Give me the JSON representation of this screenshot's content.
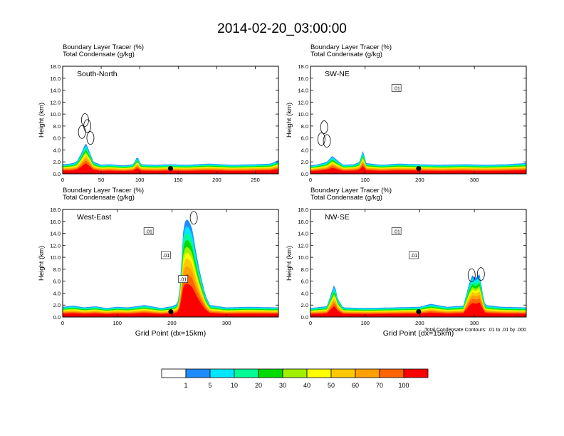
{
  "title": "2014-02-20_03:00:00",
  "palette": [
    "#ffffff",
    "#1e8cff",
    "#00e6ff",
    "#00fa96",
    "#00dc00",
    "#a0f000",
    "#ffff00",
    "#ffc800",
    "#ffa000",
    "#ff6400",
    "#ff0000"
  ],
  "colorbar_labels": [
    "1",
    "5",
    "10",
    "20",
    "30",
    "40",
    "50",
    "60",
    "70",
    "100"
  ],
  "contour_note": "Total Condensate Contours: .01 to .01 by .000",
  "chart_data": [
    {
      "type": "heatmap",
      "subtitle_line1": "Boundary Layer Tracer   (%)",
      "subtitle_line2": "Total Condensate   (g/kg)",
      "panel_label": "South-North",
      "ylabel": "Height (km)",
      "xlabel": "",
      "xlim": [
        0,
        280
      ],
      "ylim": [
        0,
        18
      ],
      "xticks": [
        "0",
        "50",
        "100",
        "150",
        "200",
        "250"
      ],
      "xtick_values": [
        0,
        50,
        100,
        150,
        200,
        250
      ],
      "yticks": [
        "0.0",
        "2.0",
        "4.0",
        "6.0",
        "8.0",
        "10.0",
        "12.0",
        "14.0",
        "16.0",
        "18.0"
      ],
      "pbl_top_km": [
        [
          0,
          1.6
        ],
        [
          10,
          1.7
        ],
        [
          18,
          2.0
        ],
        [
          24,
          3.4
        ],
        [
          30,
          5.2
        ],
        [
          34,
          4.0
        ],
        [
          40,
          2.0
        ],
        [
          50,
          1.5
        ],
        [
          60,
          1.6
        ],
        [
          80,
          1.4
        ],
        [
          92,
          1.6
        ],
        [
          97,
          3.0
        ],
        [
          101,
          1.6
        ],
        [
          120,
          1.5
        ],
        [
          140,
          1.6
        ],
        [
          160,
          1.5
        ],
        [
          190,
          1.7
        ],
        [
          220,
          1.5
        ],
        [
          250,
          1.6
        ],
        [
          270,
          1.7
        ],
        [
          280,
          2.3
        ]
      ],
      "max_height_km": [
        [
          25,
          7.0
        ],
        [
          29,
          9.0
        ],
        [
          32,
          8.0
        ],
        [
          36,
          6.0
        ]
      ],
      "terrain_marker_x": 140,
      "contour_labels": []
    },
    {
      "type": "heatmap",
      "subtitle_line1": "Boundary Layer Tracer   (%)",
      "subtitle_line2": "Total Condensate   (g/kg)",
      "panel_label": "SW-NE",
      "ylabel": "Height (km)",
      "xlabel": "",
      "xlim": [
        0,
        395
      ],
      "ylim": [
        0,
        18
      ],
      "xticks": [
        "0",
        "100",
        "200",
        "300"
      ],
      "xtick_values": [
        0,
        100,
        200,
        300
      ],
      "yticks": [
        "0.0",
        "2.0",
        "4.0",
        "6.0",
        "8.0",
        "10.0",
        "12.0",
        "14.0",
        "16.0",
        "18.0"
      ],
      "pbl_top_km": [
        [
          0,
          1.4
        ],
        [
          15,
          1.6
        ],
        [
          30,
          2.0
        ],
        [
          40,
          3.0
        ],
        [
          50,
          2.2
        ],
        [
          60,
          1.5
        ],
        [
          80,
          1.6
        ],
        [
          90,
          2.0
        ],
        [
          96,
          4.0
        ],
        [
          102,
          1.8
        ],
        [
          130,
          1.5
        ],
        [
          160,
          1.7
        ],
        [
          200,
          1.6
        ],
        [
          240,
          1.5
        ],
        [
          280,
          1.6
        ],
        [
          320,
          1.5
        ],
        [
          360,
          1.6
        ],
        [
          395,
          1.8
        ]
      ],
      "max_height_km": [
        [
          20,
          5.8
        ],
        [
          25,
          7.8
        ],
        [
          30,
          5.5
        ]
      ],
      "terrain_marker_x": 198,
      "contour_labels": [
        ".01"
      ]
    },
    {
      "type": "heatmap",
      "subtitle_line1": "Boundary Layer Tracer   (%)",
      "subtitle_line2": "Total Condensate   (g/kg)",
      "panel_label": "West-East",
      "ylabel": "Height (km)",
      "xlabel": "Grid Point (dx=15km)",
      "xlim": [
        0,
        395
      ],
      "ylim": [
        0,
        18
      ],
      "xticks": [
        "0",
        "100",
        "200",
        "300"
      ],
      "xtick_values": [
        0,
        100,
        200,
        300
      ],
      "yticks": [
        "0.0",
        "2.0",
        "4.0",
        "6.0",
        "8.0",
        "10.0",
        "12.0",
        "14.0",
        "16.0",
        "18.0"
      ],
      "pbl_top_km": [
        [
          0,
          1.7
        ],
        [
          20,
          1.9
        ],
        [
          40,
          1.6
        ],
        [
          60,
          1.8
        ],
        [
          80,
          1.5
        ],
        [
          100,
          1.7
        ],
        [
          120,
          1.6
        ],
        [
          150,
          2.0
        ],
        [
          180,
          1.5
        ],
        [
          200,
          1.8
        ],
        [
          210,
          2.2
        ],
        [
          215,
          5.0
        ],
        [
          220,
          14.0
        ],
        [
          225,
          16.5
        ],
        [
          232,
          16.0
        ],
        [
          238,
          14.5
        ],
        [
          242,
          12.0
        ],
        [
          248,
          9.0
        ],
        [
          255,
          6.0
        ],
        [
          262,
          3.5
        ],
        [
          270,
          2.0
        ],
        [
          300,
          1.6
        ],
        [
          340,
          1.7
        ],
        [
          395,
          1.6
        ]
      ],
      "max_height_km": [
        [
          240,
          16.6
        ]
      ],
      "terrain_marker_x": 198,
      "contour_labels": [
        ".01",
        ".01",
        ".01"
      ]
    },
    {
      "type": "heatmap",
      "subtitle_line1": "Boundary Layer Tracer   (%)",
      "subtitle_line2": "Total Condensate   (g/kg)",
      "panel_label": "NW-SE",
      "ylabel": "Height (km)",
      "xlabel": "Grid Point (dx=15km)",
      "xlim": [
        0,
        395
      ],
      "ylim": [
        0,
        18
      ],
      "xticks": [
        "0",
        "100",
        "200",
        "300"
      ],
      "xtick_values": [
        0,
        100,
        200,
        300
      ],
      "yticks": [
        "0.0",
        "2.0",
        "4.0",
        "6.0",
        "8.0",
        "10.0",
        "12.0",
        "14.0",
        "16.0",
        "18.0"
      ],
      "pbl_top_km": [
        [
          0,
          1.5
        ],
        [
          30,
          1.8
        ],
        [
          38,
          4.0
        ],
        [
          44,
          5.6
        ],
        [
          50,
          3.0
        ],
        [
          60,
          1.6
        ],
        [
          100,
          1.5
        ],
        [
          150,
          1.6
        ],
        [
          200,
          1.7
        ],
        [
          220,
          2.2
        ],
        [
          250,
          1.7
        ],
        [
          280,
          1.9
        ],
        [
          290,
          5.5
        ],
        [
          296,
          7.0
        ],
        [
          302,
          6.5
        ],
        [
          310,
          7.2
        ],
        [
          315,
          4.0
        ],
        [
          320,
          2.0
        ],
        [
          350,
          1.7
        ],
        [
          395,
          1.6
        ]
      ],
      "max_height_km": [
        [
          295,
          7.0
        ],
        [
          312,
          7.2
        ]
      ],
      "terrain_marker_x": 198,
      "contour_labels": [
        ".01",
        ".01"
      ]
    }
  ]
}
